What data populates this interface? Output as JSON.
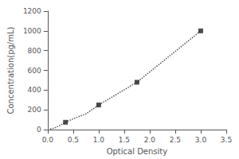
{
  "chart_data": {
    "type": "line",
    "xlabel": "Optical Density",
    "ylabel": "Concentration(pg/mL)",
    "series": [
      {
        "type": "line",
        "x": [
          0.05,
          0.15,
          0.25,
          0.35,
          0.5,
          0.75,
          1.0,
          1.75,
          3.0
        ],
        "values": [
          5,
          20,
          45,
          75,
          110,
          160,
          250,
          480,
          1000
        ],
        "color": "#555555",
        "line_style": "dotted",
        "marker": "none"
      },
      {
        "type": "scatter",
        "x": [
          0.35,
          1.0,
          1.75,
          3.0
        ],
        "values": [
          75,
          250,
          480,
          1000
        ],
        "color": "#222222",
        "marker": "square"
      }
    ],
    "xlim": [
      0,
      3.5
    ],
    "ylim": [
      0,
      1200
    ],
    "xticks": [
      {
        "value": 0,
        "label": "0.0"
      },
      0.5,
      {
        "value": 1.0,
        "label": "1.0"
      },
      1.5,
      {
        "value": 2.0,
        "label": "2.0"
      },
      2.5,
      {
        "value": 3.0,
        "label": "3.0"
      },
      3.5
    ],
    "yticks": [
      0,
      200,
      400,
      600,
      800,
      1000,
      1200
    ],
    "grid": false
  }
}
